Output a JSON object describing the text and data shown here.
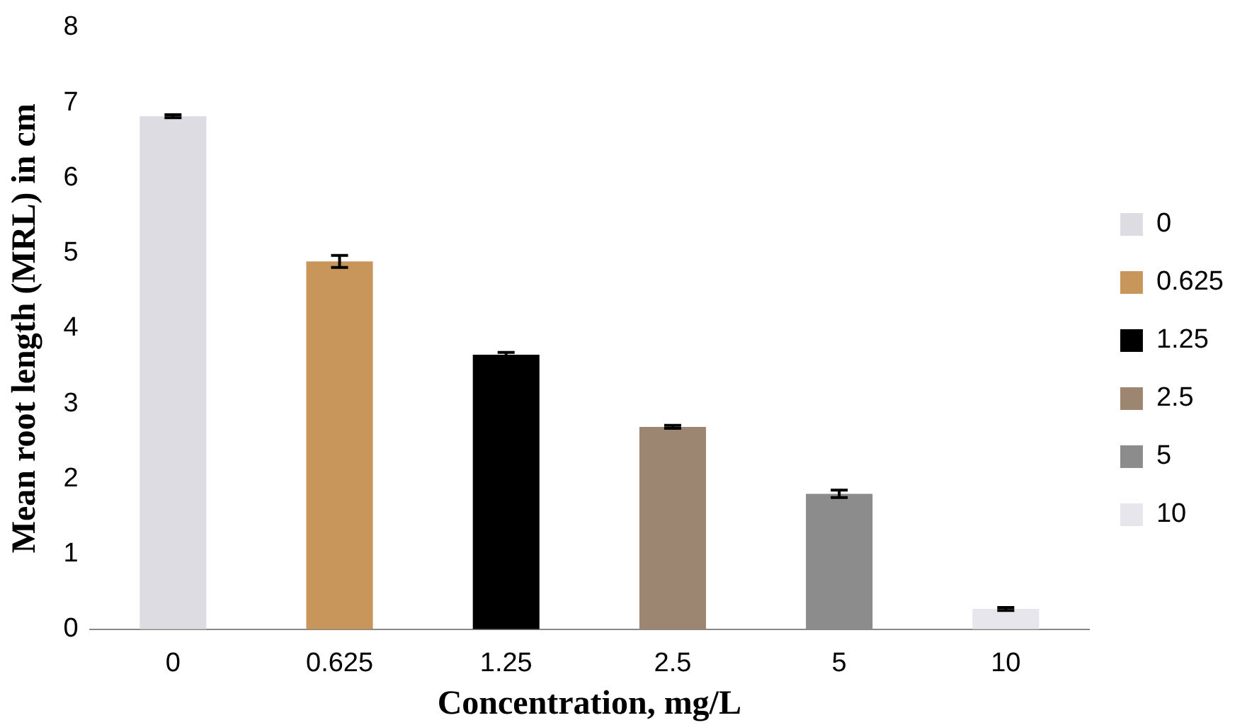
{
  "chart_data": {
    "type": "bar",
    "xlabel": "Concentration, mg/L",
    "ylabel": "Mean root length (MRL) in cm",
    "categories": [
      "0",
      "0.625",
      "1.25",
      "2.5",
      "5",
      "10"
    ],
    "stacked": true,
    "series": [
      {
        "name": "0",
        "color": "#dcdce2",
        "values": [
          6.82,
          null,
          null,
          null,
          null,
          null
        ],
        "errors": [
          0.02,
          null,
          null,
          null,
          null,
          null
        ]
      },
      {
        "name": "0.625",
        "color": "#c8955a",
        "values": [
          null,
          4.89,
          null,
          null,
          null,
          null
        ],
        "errors": [
          null,
          0.08,
          null,
          null,
          null,
          null
        ]
      },
      {
        "name": "1.25",
        "color": "#000000",
        "values": [
          null,
          null,
          3.65,
          null,
          null,
          null
        ],
        "errors": [
          null,
          null,
          0.03,
          null,
          null,
          null
        ]
      },
      {
        "name": "2.5",
        "color": "#9c8672",
        "values": [
          null,
          null,
          null,
          2.69,
          null,
          null
        ],
        "errors": [
          null,
          null,
          null,
          0.02,
          null,
          null
        ]
      },
      {
        "name": "5",
        "color": "#8c8c8c",
        "values": [
          null,
          null,
          null,
          null,
          1.8,
          null
        ],
        "errors": [
          null,
          null,
          null,
          null,
          0.05,
          null
        ]
      },
      {
        "name": "10",
        "color": "#e6e6ec",
        "values": [
          null,
          null,
          null,
          null,
          null,
          0.27
        ],
        "errors": [
          null,
          null,
          null,
          null,
          null,
          0.02
        ]
      }
    ],
    "ylim": [
      0,
      8
    ],
    "yticks": [
      0,
      1,
      2,
      3,
      4,
      5,
      6,
      7,
      8
    ],
    "grid": false,
    "legend": "right"
  }
}
